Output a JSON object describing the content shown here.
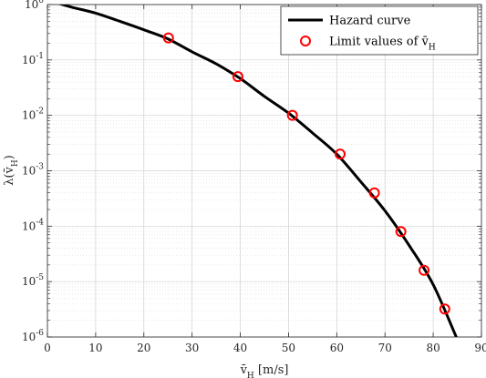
{
  "chart_data": {
    "type": "line",
    "xlabel": "v̄_H [m/s]",
    "ylabel": "λ(v̄_H)",
    "xlim": [
      0,
      90
    ],
    "ylim": [
      1e-06,
      1
    ],
    "yscale": "log",
    "grid": true,
    "minor_grid": true,
    "legend_position": "top-right",
    "xticks": [
      0,
      10,
      20,
      30,
      40,
      50,
      60,
      70,
      80,
      90
    ],
    "xtick_labels": [
      "0",
      "10",
      "20",
      "30",
      "40",
      "50",
      "60",
      "70",
      "80",
      "90"
    ],
    "yticks": [
      1,
      0.1,
      0.01,
      0.001,
      0.0001,
      1e-05,
      1e-06
    ],
    "ytick_labels": [
      {
        "base": "10",
        "exp": "0"
      },
      {
        "base": "10",
        "exp": "-1"
      },
      {
        "base": "10",
        "exp": "-2"
      },
      {
        "base": "10",
        "exp": "-3"
      },
      {
        "base": "10",
        "exp": "-4"
      },
      {
        "base": "10",
        "exp": "-5"
      },
      {
        "base": "10",
        "exp": "-6"
      }
    ],
    "series": [
      {
        "name": "Hazard curve",
        "style": "line",
        "color": "#000000",
        "x": [
          0,
          5,
          10,
          15,
          20,
          25,
          30,
          35,
          40,
          45,
          50,
          55,
          60,
          65,
          70,
          75,
          80,
          85
        ],
        "y": [
          1.2,
          0.9,
          0.7,
          0.5,
          0.35,
          0.24,
          0.14,
          0.085,
          0.046,
          0.022,
          0.011,
          0.0048,
          0.002,
          0.00063,
          0.00019,
          4.5e-05,
          8.8e-06,
          9e-07
        ]
      },
      {
        "name": "Limit values of v̄_H",
        "style": "markers",
        "marker": "circle",
        "color": "#ff0000",
        "x": [
          25.1,
          39.5,
          50.8,
          60.7,
          67.8,
          73.3,
          78.1,
          82.4
        ],
        "y": [
          0.25,
          0.05,
          0.01,
          0.002,
          0.0004,
          8e-05,
          1.6e-05,
          3.2e-06
        ]
      }
    ]
  }
}
